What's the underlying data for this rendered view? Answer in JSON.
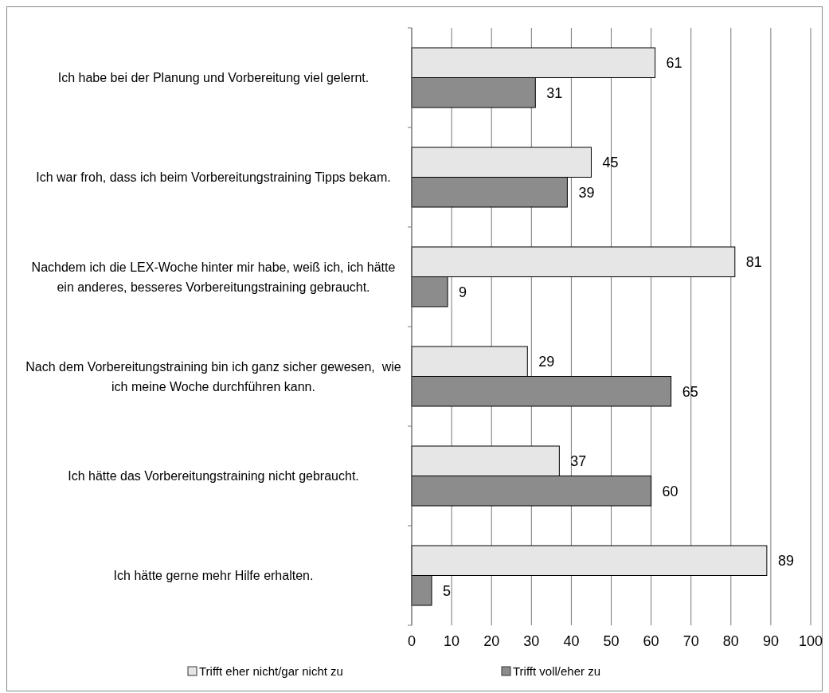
{
  "chart_data": {
    "type": "bar",
    "orientation": "horizontal",
    "categories": [
      "Ich habe bei der Planung und Vorbereitung viel gelernt.",
      "Ich war froh, dass ich beim Vorbereitungstraining Tipps bekam.",
      "Nachdem ich die LEX-Woche hinter mir habe, weiß ich, ich hätte ein anderes, besseres Vorbereitungstraining gebraucht.",
      "Nach dem Vorbereitungstraining bin ich ganz sicher gewesen,  wie ich meine Woche durchführen kann.",
      "Ich hätte das Vorbereitungstraining nicht gebraucht.",
      "Ich hätte gerne mehr Hilfe erhalten."
    ],
    "series": [
      {
        "name": "Trifft eher nicht/gar nicht zu",
        "color": "#e6e6e6",
        "values": [
          61,
          45,
          81,
          29,
          37,
          89
        ]
      },
      {
        "name": "Trifft voll/eher zu",
        "color": "#8c8c8c",
        "values": [
          31,
          39,
          9,
          65,
          60,
          5
        ]
      }
    ],
    "xlim": [
      0,
      100
    ],
    "xticks": [
      0,
      10,
      20,
      30,
      40,
      50,
      60,
      70,
      80,
      90,
      100
    ],
    "grid": "x",
    "legend": "bottom",
    "data_labels": true
  }
}
